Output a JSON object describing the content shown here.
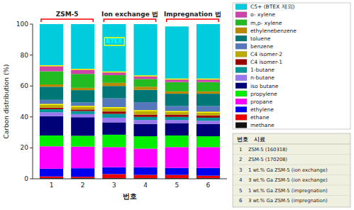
{
  "chart_data": {
    "type": "bar",
    "stacked": true,
    "xlabel": "번호",
    "ylabel": "Carbon distribution (%)",
    "categories": [
      "1",
      "2",
      "3",
      "4",
      "5",
      "6"
    ],
    "ylim": [
      0,
      100
    ],
    "yticks": [
      0,
      20,
      40,
      60,
      80,
      100
    ],
    "grid": false,
    "legend": "right",
    "series": [
      {
        "name": "methane",
        "color": "#111111",
        "values": [
          0.5,
          0.5,
          0.5,
          0.5,
          0.5,
          0.5
        ]
      },
      {
        "name": "ethane",
        "color": "#EE0000",
        "values": [
          1.0,
          0.8,
          2.5,
          2.0,
          2.0,
          1.5
        ]
      },
      {
        "name": "ethylene",
        "color": "#0000EE",
        "values": [
          5.0,
          5.5,
          4.5,
          5.0,
          4.5,
          5.0
        ]
      },
      {
        "name": "propane",
        "color": "#FF00FF",
        "values": [
          14.5,
          14.0,
          13.0,
          12.0,
          13.5,
          13.5
        ]
      },
      {
        "name": "propylene",
        "color": "#00EE00",
        "values": [
          7.0,
          7.0,
          8.0,
          8.0,
          7.5,
          7.0
        ]
      },
      {
        "name": "iso butane",
        "color": "#000077",
        "values": [
          12.5,
          12.0,
          8.0,
          8.0,
          8.0,
          8.0
        ]
      },
      {
        "name": "n-butane",
        "color": "#9977EE",
        "values": [
          2.5,
          2.0,
          3.0,
          2.5,
          2.0,
          2.0
        ]
      },
      {
        "name": "1-butane",
        "color": "#009999",
        "values": [
          2.0,
          2.0,
          2.5,
          2.0,
          2.0,
          2.0
        ]
      },
      {
        "name": "C4 isomer-1",
        "color": "#990000",
        "values": [
          1.0,
          1.0,
          1.5,
          1.5,
          1.5,
          1.5
        ]
      },
      {
        "name": "C4 isomer-2",
        "color": "#BBAA00",
        "values": [
          2.0,
          2.0,
          2.5,
          2.5,
          2.0,
          2.0
        ]
      },
      {
        "name": "benzene",
        "color": "#5577BB",
        "values": [
          3.0,
          2.5,
          6.0,
          5.5,
          3.5,
          4.0
        ]
      },
      {
        "name": "toluene",
        "color": "#007777",
        "values": [
          8.5,
          8.0,
          8.0,
          8.0,
          8.0,
          8.0
        ]
      },
      {
        "name": "ethylenebenzene",
        "color": "#BB8800",
        "values": [
          1.5,
          1.5,
          2.0,
          2.0,
          1.5,
          1.5
        ]
      },
      {
        "name": "m,p- xylene",
        "color": "#22BB22",
        "values": [
          8.5,
          9.0,
          5.0,
          5.0,
          6.0,
          6.0
        ]
      },
      {
        "name": "o- xylene",
        "color": "#CC44AA",
        "values": [
          3.5,
          3.0,
          2.0,
          2.0,
          2.0,
          2.0
        ]
      },
      {
        "name": "C5+ (BTEX 제외)",
        "color": "#00CCDD",
        "values": [
          27.0,
          29.2,
          31.0,
          33.5,
          34.0,
          35.5
        ]
      }
    ],
    "groups": [
      {
        "label": "ZSM-5",
        "categories": [
          "1",
          "2"
        ]
      },
      {
        "label": "Ion exchange 법",
        "categories": [
          "3",
          "4"
        ]
      },
      {
        "label": "Impregnation 법",
        "categories": [
          "5",
          "6"
        ]
      }
    ],
    "annotations": [
      {
        "text": "BTEX",
        "x": "3",
        "y": 89
      }
    ],
    "table": {
      "header": [
        "번호",
        "시료"
      ],
      "rows": [
        [
          "1",
          "ZSM-5 (160318)"
        ],
        [
          "2",
          "ZSM-5 (170208)"
        ],
        [
          "3",
          "1 wt.% Ga ZSM-5 (ion exchange)"
        ],
        [
          "4",
          "3 wt.% Ga ZSM-5 (ion exchange)"
        ],
        [
          "5",
          "1 wt.% Ga ZSM-5 (impregnation)"
        ],
        [
          "6",
          "3 wt.% Ga ZSM-5 (impregnation)"
        ]
      ]
    }
  }
}
